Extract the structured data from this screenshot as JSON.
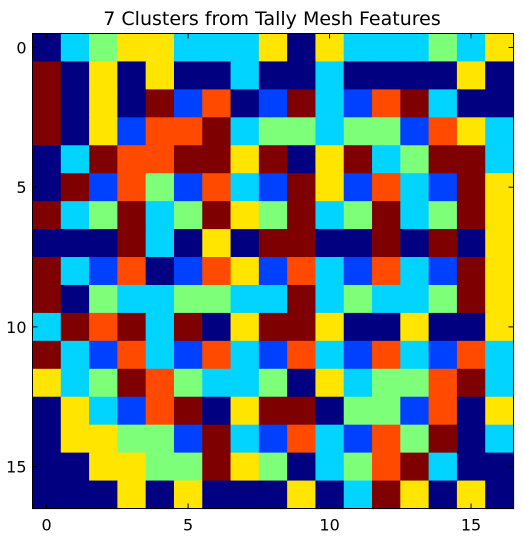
{
  "chart_data": {
    "type": "heatmap",
    "title": "7 Clusters from Tally Mesh Features",
    "xlabel": "",
    "ylabel": "",
    "xlim": [
      -0.5,
      16.5
    ],
    "ylim": [
      16.5,
      -0.5
    ],
    "x_ticks": [
      0,
      5,
      10,
      15
    ],
    "y_ticks": [
      0,
      5,
      10,
      15
    ],
    "grid": false,
    "colormap": "jet",
    "cluster_colors": {
      "0": "#000080",
      "1": "#7f0000",
      "2": "#0040ff",
      "3": "#00d4ff",
      "4": "#7dff7a",
      "5": "#ffe500",
      "6": "#ff4a00"
    },
    "values": [
      [
        0,
        3,
        4,
        5,
        5,
        3,
        3,
        3,
        5,
        0,
        5,
        3,
        3,
        3,
        4,
        3,
        5
      ],
      [
        1,
        0,
        5,
        0,
        5,
        0,
        0,
        3,
        0,
        0,
        3,
        0,
        0,
        0,
        0,
        5,
        0
      ],
      [
        1,
        0,
        5,
        0,
        1,
        2,
        6,
        0,
        2,
        1,
        3,
        2,
        6,
        1,
        3,
        0,
        0
      ],
      [
        1,
        0,
        5,
        2,
        6,
        6,
        1,
        3,
        4,
        4,
        3,
        4,
        4,
        2,
        6,
        5,
        3
      ],
      [
        0,
        3,
        1,
        6,
        6,
        1,
        1,
        5,
        1,
        0,
        5,
        1,
        3,
        4,
        1,
        1,
        3
      ],
      [
        0,
        1,
        2,
        6,
        4,
        2,
        6,
        3,
        2,
        1,
        5,
        2,
        6,
        3,
        2,
        1,
        5
      ],
      [
        1,
        3,
        4,
        1,
        3,
        4,
        1,
        5,
        4,
        1,
        3,
        4,
        1,
        3,
        4,
        1,
        5
      ],
      [
        0,
        0,
        0,
        1,
        3,
        0,
        5,
        0,
        1,
        1,
        0,
        0,
        1,
        0,
        1,
        0,
        5
      ],
      [
        1,
        3,
        2,
        6,
        0,
        2,
        6,
        5,
        2,
        6,
        3,
        2,
        6,
        3,
        2,
        1,
        5
      ],
      [
        1,
        0,
        4,
        3,
        3,
        4,
        4,
        3,
        3,
        1,
        3,
        4,
        3,
        3,
        4,
        1,
        5
      ],
      [
        3,
        1,
        6,
        1,
        3,
        1,
        0,
        5,
        1,
        1,
        5,
        0,
        0,
        5,
        0,
        0,
        5
      ],
      [
        1,
        3,
        2,
        6,
        3,
        2,
        6,
        3,
        2,
        6,
        3,
        2,
        6,
        3,
        2,
        6,
        3
      ],
      [
        5,
        3,
        4,
        1,
        6,
        4,
        3,
        3,
        4,
        0,
        5,
        3,
        4,
        4,
        6,
        1,
        3
      ],
      [
        0,
        5,
        3,
        2,
        6,
        1,
        0,
        5,
        1,
        1,
        0,
        4,
        4,
        2,
        6,
        0,
        5
      ],
      [
        0,
        5,
        5,
        4,
        4,
        2,
        1,
        3,
        2,
        6,
        3,
        2,
        6,
        4,
        1,
        0,
        3
      ],
      [
        0,
        0,
        5,
        5,
        4,
        4,
        1,
        5,
        4,
        0,
        3,
        4,
        6,
        1,
        3,
        0,
        0
      ],
      [
        0,
        0,
        0,
        5,
        0,
        5,
        0,
        0,
        0,
        5,
        0,
        3,
        1,
        5,
        0,
        5,
        0
      ]
    ]
  }
}
